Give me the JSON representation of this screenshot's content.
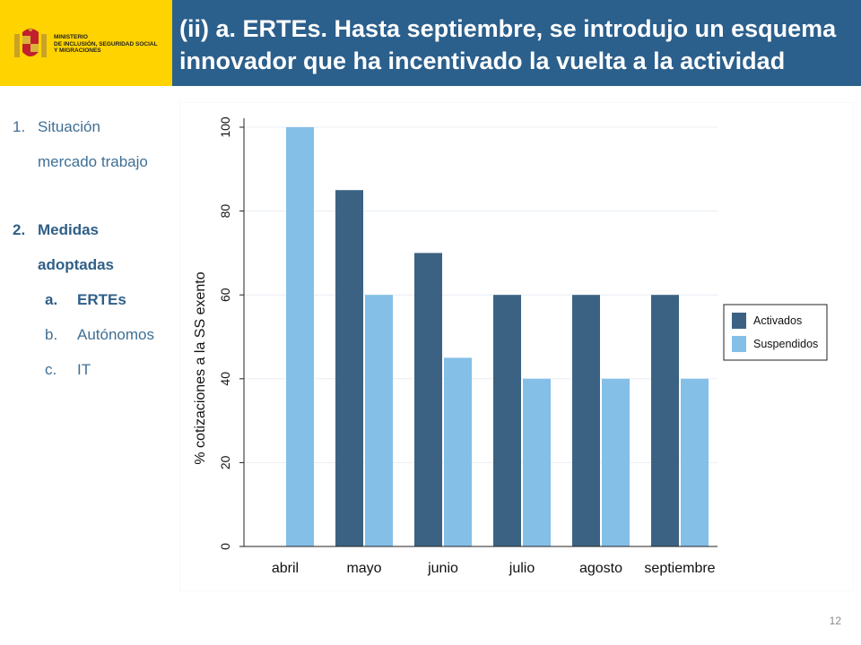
{
  "header": {
    "ministry_label": "MINISTERIO\nDE INCLUSIÓN, SEGURIDAD SOCIAL\nY MIGRACIONES",
    "title": "(ii) a. ERTEs. Hasta septiembre, se introdujo un esquema innovador que ha incentivado la vuelta a la actividad"
  },
  "colors": {
    "brand_yellow": "#ffd300",
    "title_bar": "#2b5f8c",
    "activados": "#3b6282",
    "suspendidos": "#84bfe8",
    "nav_text": "#3f6f95"
  },
  "sidebar": {
    "items": [
      {
        "num": "1.",
        "label": "Situación",
        "label2": "mercado trabajo"
      },
      {
        "num": "2.",
        "label": "Medidas",
        "label2": "adoptadas"
      },
      {
        "num": "a.",
        "label": "ERTEs"
      },
      {
        "num": "b.",
        "label": "Autónomos"
      },
      {
        "num": "c.",
        "label": "IT"
      }
    ]
  },
  "chart_data": {
    "type": "bar",
    "categories": [
      "abril",
      "mayo",
      "junio",
      "julio",
      "agosto",
      "septiembre"
    ],
    "series": [
      {
        "name": "Activados",
        "values": [
          null,
          85,
          70,
          60,
          60,
          60
        ]
      },
      {
        "name": "Suspendidos",
        "values": [
          100,
          60,
          45,
          40,
          40,
          40
        ]
      }
    ],
    "ylabel": "% cotizaciones a la SS exento",
    "ylim": [
      0,
      100
    ],
    "yticks": [
      0,
      20,
      40,
      60,
      80,
      100
    ],
    "grid": true,
    "legend": "right"
  },
  "footer": {
    "page_number": "12"
  }
}
